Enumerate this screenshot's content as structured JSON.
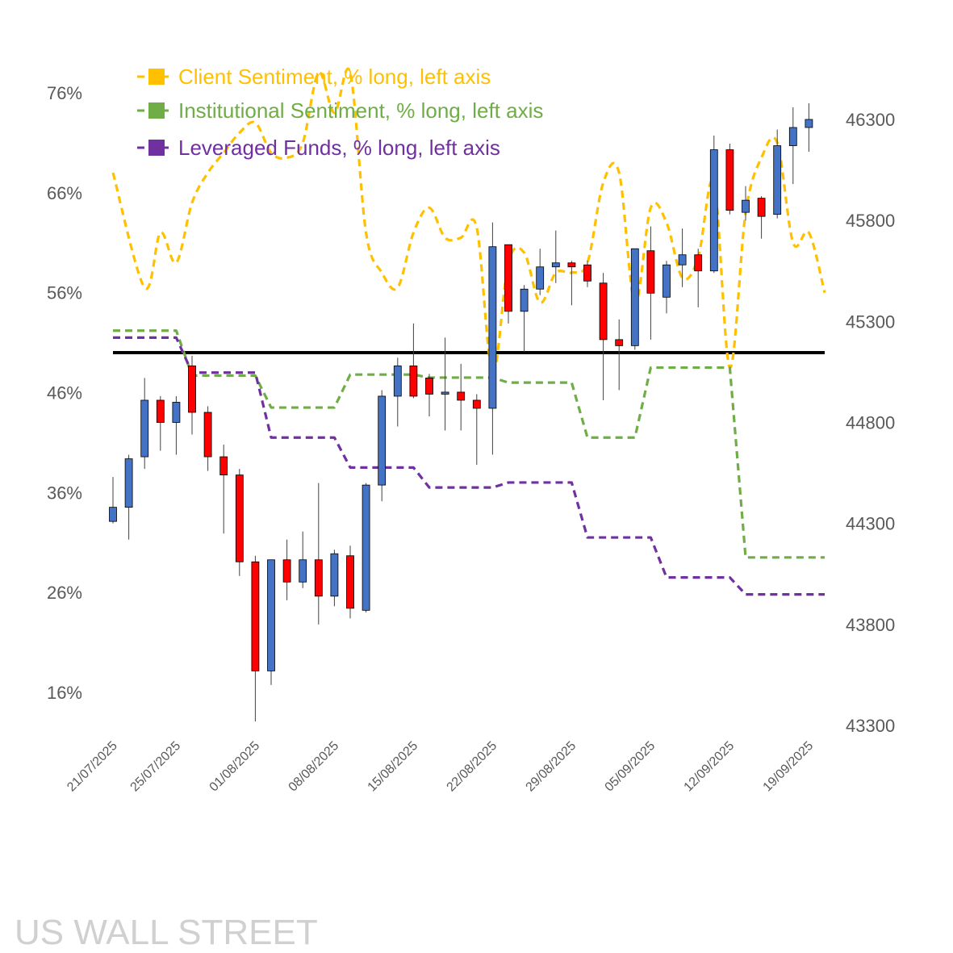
{
  "chart_data": {
    "type": "candlestick+line",
    "watermark": "US WALL STREET",
    "left_axis": {
      "ticks": [
        "76%",
        "66%",
        "56%",
        "46%",
        "36%",
        "26%",
        "16%"
      ],
      "values": [
        76,
        66,
        56,
        46,
        36,
        26,
        16
      ],
      "range": [
        13,
        80
      ]
    },
    "right_axis": {
      "ticks": [
        "46300",
        "45800",
        "45300",
        "44800",
        "44300",
        "43800",
        "43300"
      ],
      "values": [
        46300,
        45800,
        45300,
        44800,
        44300,
        43800,
        43300
      ],
      "range": [
        43300,
        46300
      ]
    },
    "x_labels": [
      "21/07/2025",
      "25/07/2025",
      "01/08/2025",
      "08/08/2025",
      "15/08/2025",
      "22/08/2025",
      "29/08/2025",
      "05/09/2025",
      "12/09/2025",
      "19/09/2025"
    ],
    "x_label_days": [
      0,
      4,
      9,
      14,
      19,
      24,
      29,
      34,
      39,
      44
    ],
    "reference_line": {
      "value": 50,
      "axis": "left",
      "color": "#000000"
    },
    "colors": {
      "up": "#4472C4",
      "down": "#FF0000",
      "client": "#FFC000",
      "institutional": "#70AD47",
      "leveraged": "#7030A0"
    },
    "legend": [
      {
        "label": "Client Sentiment, % long, left axis",
        "color": "#FFC000",
        "color_key": "client",
        "text_color": "#FFC000"
      },
      {
        "label": "Institutional Sentiment, % long, left axis",
        "color": "#70AD47",
        "color_key": "institutional",
        "text_color": "#70AD47"
      },
      {
        "label": "Leveraged Funds, % long, left axis",
        "color": "#7030A0",
        "color_key": "leveraged",
        "text_color": "#7030A0"
      }
    ],
    "candles": [
      {
        "day": 0,
        "open": 44310,
        "close": 44380,
        "high": 44530,
        "low": 44300
      },
      {
        "day": 1,
        "open": 44380,
        "close": 44620,
        "high": 44640,
        "low": 44220
      },
      {
        "day": 2,
        "open": 44630,
        "close": 44910,
        "high": 45020,
        "low": 44570
      },
      {
        "day": 3,
        "open": 44910,
        "close": 44800,
        "high": 44930,
        "low": 44660
      },
      {
        "day": 4,
        "open": 44800,
        "close": 44900,
        "high": 44930,
        "low": 44640
      },
      {
        "day": 5,
        "open": 45080,
        "close": 44850,
        "high": 45130,
        "low": 44740
      },
      {
        "day": 6,
        "open": 44850,
        "close": 44630,
        "high": 44880,
        "low": 44560
      },
      {
        "day": 7,
        "open": 44630,
        "close": 44540,
        "high": 44690,
        "low": 44250
      },
      {
        "day": 8,
        "open": 44540,
        "close": 44110,
        "high": 44570,
        "low": 44040
      },
      {
        "day": 9,
        "open": 44110,
        "close": 43570,
        "high": 44140,
        "low": 43320
      },
      {
        "day": 10,
        "open": 43570,
        "close": 44120,
        "high": 44120,
        "low": 43500
      },
      {
        "day": 11,
        "open": 44120,
        "close": 44010,
        "high": 44220,
        "low": 43920
      },
      {
        "day": 12,
        "open": 44010,
        "close": 44120,
        "high": 44260,
        "low": 43980
      },
      {
        "day": 13,
        "open": 44120,
        "close": 43940,
        "high": 44500,
        "low": 43800
      },
      {
        "day": 14,
        "open": 43940,
        "close": 44150,
        "high": 44170,
        "low": 43890
      },
      {
        "day": 15,
        "open": 44140,
        "close": 43880,
        "high": 44190,
        "low": 43830
      },
      {
        "day": 16,
        "open": 43870,
        "close": 44490,
        "high": 44500,
        "low": 43860
      },
      {
        "day": 17,
        "open": 44490,
        "close": 44930,
        "high": 44960,
        "low": 44410
      },
      {
        "day": 18,
        "open": 44930,
        "close": 45080,
        "high": 45120,
        "low": 44780
      },
      {
        "day": 19,
        "open": 45080,
        "close": 44930,
        "high": 45290,
        "low": 44920
      },
      {
        "day": 20,
        "open": 45020,
        "close": 44940,
        "high": 45040,
        "low": 44830
      },
      {
        "day": 21,
        "open": 44940,
        "close": 44950,
        "high": 45220,
        "low": 44760
      },
      {
        "day": 22,
        "open": 44950,
        "close": 44910,
        "high": 45090,
        "low": 44760
      },
      {
        "day": 23,
        "open": 44910,
        "close": 44870,
        "high": 44940,
        "low": 44590
      },
      {
        "day": 24,
        "open": 44870,
        "close": 45670,
        "high": 45790,
        "low": 44640
      },
      {
        "day": 25,
        "open": 45680,
        "close": 45350,
        "high": 45680,
        "low": 45290
      },
      {
        "day": 26,
        "open": 45350,
        "close": 45460,
        "high": 45480,
        "low": 45150
      },
      {
        "day": 27,
        "open": 45460,
        "close": 45570,
        "high": 45660,
        "low": 45430
      },
      {
        "day": 28,
        "open": 45570,
        "close": 45590,
        "high": 45750,
        "low": 45490
      },
      {
        "day": 29,
        "open": 45590,
        "close": 45570,
        "high": 45600,
        "low": 45380
      },
      {
        "day": 30,
        "open": 45580,
        "close": 45500,
        "high": 45600,
        "low": 45470
      },
      {
        "day": 31,
        "open": 45490,
        "close": 45210,
        "high": 45540,
        "low": 44910
      },
      {
        "day": 32,
        "open": 45210,
        "close": 45180,
        "high": 45310,
        "low": 44960
      },
      {
        "day": 33,
        "open": 45180,
        "close": 45660,
        "high": 45660,
        "low": 45160
      },
      {
        "day": 34,
        "open": 45650,
        "close": 45440,
        "high": 45770,
        "low": 45210
      },
      {
        "day": 35,
        "open": 45420,
        "close": 45580,
        "high": 45600,
        "low": 45340
      },
      {
        "day": 36,
        "open": 45580,
        "close": 45630,
        "high": 45760,
        "low": 45470
      },
      {
        "day": 37,
        "open": 45630,
        "close": 45550,
        "high": 45660,
        "low": 45370
      },
      {
        "day": 38,
        "open": 45550,
        "close": 46150,
        "high": 46220,
        "low": 45540
      },
      {
        "day": 39,
        "open": 46150,
        "close": 45850,
        "high": 46180,
        "low": 45830
      },
      {
        "day": 40,
        "open": 45840,
        "close": 45900,
        "high": 45970,
        "low": 45800
      },
      {
        "day": 41,
        "open": 45910,
        "close": 45820,
        "high": 45920,
        "low": 45710
      },
      {
        "day": 42,
        "open": 45830,
        "close": 46170,
        "high": 46250,
        "low": 45810
      },
      {
        "day": 43,
        "open": 46170,
        "close": 46260,
        "high": 46360,
        "low": 45980
      },
      {
        "day": 44,
        "open": 46260,
        "close": 46300,
        "high": 46380,
        "low": 46140
      }
    ],
    "series": [
      {
        "name": "Client Sentiment, % long, left axis",
        "color_key": "client",
        "step": false,
        "points": [
          [
            0,
            68
          ],
          [
            2,
            56.5
          ],
          [
            3,
            62
          ],
          [
            4,
            59
          ],
          [
            5,
            65
          ],
          [
            6,
            68
          ],
          [
            7,
            70
          ],
          [
            8,
            72
          ],
          [
            9,
            73
          ],
          [
            10,
            70
          ],
          [
            11,
            69.5
          ],
          [
            12,
            71
          ],
          [
            13,
            78
          ],
          [
            14,
            74
          ],
          [
            15,
            78
          ],
          [
            16,
            62
          ],
          [
            17,
            58
          ],
          [
            18,
            56.5
          ],
          [
            19,
            62
          ],
          [
            20,
            64.5
          ],
          [
            21,
            61.5
          ],
          [
            22,
            61.5
          ],
          [
            23,
            62.5
          ],
          [
            24,
            48
          ],
          [
            25,
            59
          ],
          [
            26,
            60
          ],
          [
            27,
            55
          ],
          [
            28,
            58
          ],
          [
            29,
            58
          ],
          [
            30,
            59
          ],
          [
            31,
            67
          ],
          [
            32,
            68
          ],
          [
            33,
            55
          ],
          [
            34,
            64.5
          ],
          [
            35,
            63
          ],
          [
            36,
            57.5
          ],
          [
            37,
            59.5
          ],
          [
            38,
            67
          ],
          [
            39,
            48.5
          ],
          [
            40,
            64
          ],
          [
            41,
            69.5
          ],
          [
            42,
            71
          ],
          [
            43,
            61
          ],
          [
            44,
            62
          ],
          [
            45,
            56
          ]
        ]
      },
      {
        "name": "Institutional Sentiment, % long, left axis",
        "color_key": "institutional",
        "step": true,
        "points": [
          [
            0,
            52.2
          ],
          [
            4,
            52.2
          ],
          [
            5,
            47.7
          ],
          [
            9,
            47.7
          ],
          [
            10,
            44.5
          ],
          [
            14,
            44.5
          ],
          [
            15,
            47.8
          ],
          [
            19,
            47.8
          ],
          [
            20,
            47.5
          ],
          [
            24,
            47.5
          ],
          [
            25,
            47
          ],
          [
            29,
            47
          ],
          [
            30,
            41.5
          ],
          [
            33,
            41.5
          ],
          [
            34,
            48.5
          ],
          [
            38,
            48.5
          ],
          [
            39,
            48.5
          ],
          [
            40,
            29.5
          ],
          [
            45,
            29.5
          ]
        ]
      },
      {
        "name": "Leveraged Funds, % long, left axis",
        "color_key": "leveraged",
        "step": true,
        "points": [
          [
            0,
            51.5
          ],
          [
            4,
            51.5
          ],
          [
            5,
            48
          ],
          [
            9,
            48
          ],
          [
            10,
            41.5
          ],
          [
            14,
            41.5
          ],
          [
            15,
            38.5
          ],
          [
            19,
            38.5
          ],
          [
            20,
            36.5
          ],
          [
            24,
            36.5
          ],
          [
            25,
            37
          ],
          [
            29,
            37
          ],
          [
            30,
            31.5
          ],
          [
            34,
            31.5
          ],
          [
            35,
            27.5
          ],
          [
            38,
            27.5
          ],
          [
            39,
            27.5
          ],
          [
            40,
            25.8
          ],
          [
            45,
            25.8
          ]
        ]
      }
    ]
  }
}
